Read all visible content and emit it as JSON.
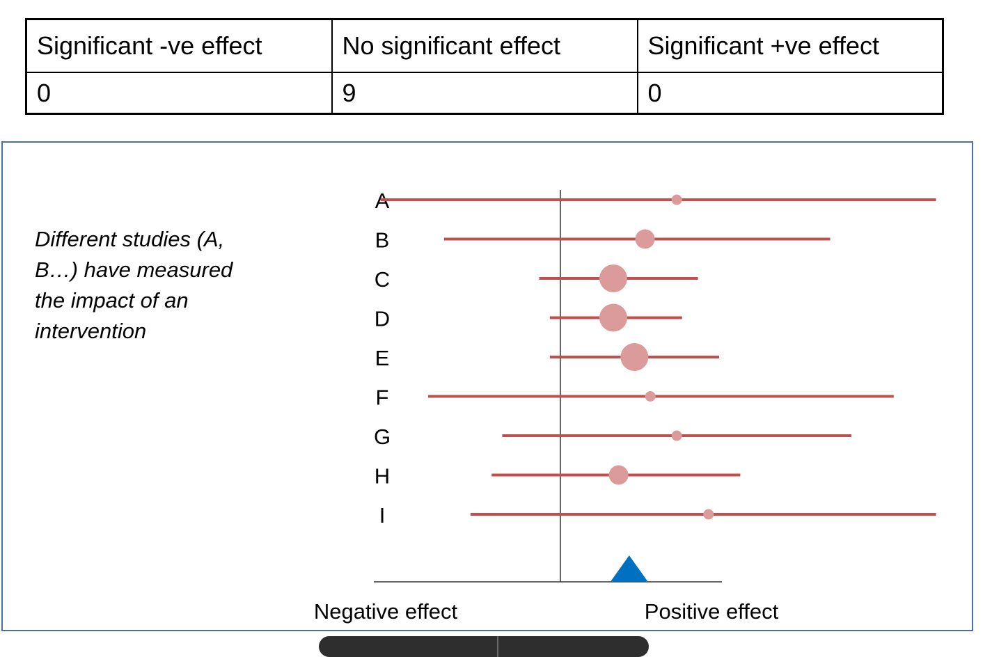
{
  "table": {
    "headers": [
      "Significant -ve effect",
      "No significant effect",
      "Significant +ve effect"
    ],
    "values": [
      "0",
      "9",
      "0"
    ]
  },
  "note": "Different studies (A, B…) have measured the impact of an intervention",
  "chart_data": {
    "type": "forest",
    "studies": [
      {
        "label": "A",
        "estimate": 0.22,
        "lower": -0.34,
        "upper": 0.71,
        "weight": 1
      },
      {
        "label": "B",
        "estimate": 0.16,
        "lower": -0.22,
        "upper": 0.51,
        "weight": 2
      },
      {
        "label": "C",
        "estimate": 0.1,
        "lower": -0.04,
        "upper": 0.26,
        "weight": 4
      },
      {
        "label": "D",
        "estimate": 0.1,
        "lower": -0.02,
        "upper": 0.23,
        "weight": 4
      },
      {
        "label": "E",
        "estimate": 0.14,
        "lower": -0.02,
        "upper": 0.3,
        "weight": 4
      },
      {
        "label": "F",
        "estimate": 0.17,
        "lower": -0.25,
        "upper": 0.63,
        "weight": 1
      },
      {
        "label": "G",
        "estimate": 0.22,
        "lower": -0.11,
        "upper": 0.55,
        "weight": 1
      },
      {
        "label": "H",
        "estimate": 0.11,
        "lower": -0.13,
        "upper": 0.34,
        "weight": 2
      },
      {
        "label": "I",
        "estimate": 0.28,
        "lower": -0.17,
        "upper": 0.71,
        "weight": 1
      }
    ],
    "pooled_estimate": 0.13,
    "xlim": [
      -0.5,
      0.5
    ],
    "null_line": 0,
    "xlabel_left": "Negative effect",
    "xlabel_right": "Positive effect",
    "colors": {
      "ci_line": "#c0504d",
      "point": "#dc9b9b",
      "pooled": "#0070c0",
      "axis": "#333333"
    }
  }
}
